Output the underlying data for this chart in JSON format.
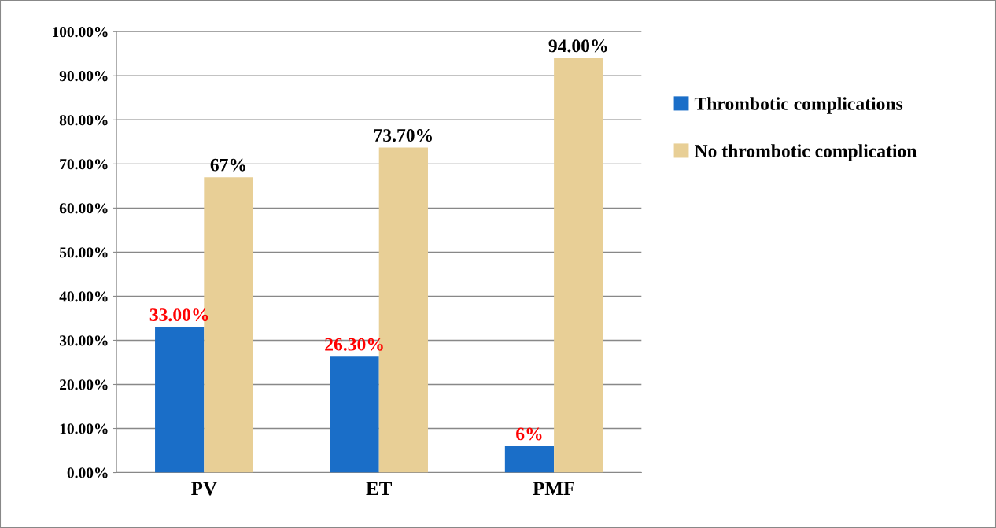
{
  "chart_data": {
    "type": "bar",
    "categories": [
      "PV",
      "ET",
      "PMF"
    ],
    "series": [
      {
        "name": "Thrombotic complications",
        "color": "#1a6ec8",
        "values": [
          33.0,
          26.3,
          6
        ],
        "value_labels": [
          "33.00%",
          "26.30%",
          "6%"
        ]
      },
      {
        "name": "No thrombotic complication",
        "color": "#e8cf96",
        "values": [
          67,
          73.7,
          94.0
        ],
        "value_labels": [
          "67%",
          "73.70%",
          "94.00%"
        ]
      }
    ],
    "ylim": [
      0,
      100
    ],
    "yticks": [
      {
        "value": 0,
        "label": "0.00%"
      },
      {
        "value": 10,
        "label": "10.00%"
      },
      {
        "value": 20,
        "label": "20.00%"
      },
      {
        "value": 30,
        "label": "30.00%"
      },
      {
        "value": 40,
        "label": "40.00%"
      },
      {
        "value": 50,
        "label": "50.00%"
      },
      {
        "value": 60,
        "label": "60.00%"
      },
      {
        "value": 70,
        "label": "70.00%"
      },
      {
        "value": 80,
        "label": "80.00%"
      },
      {
        "value": 90,
        "label": "90.00%"
      },
      {
        "value": 100,
        "label": "100.00%"
      }
    ],
    "grid": "y",
    "legend": "right"
  }
}
